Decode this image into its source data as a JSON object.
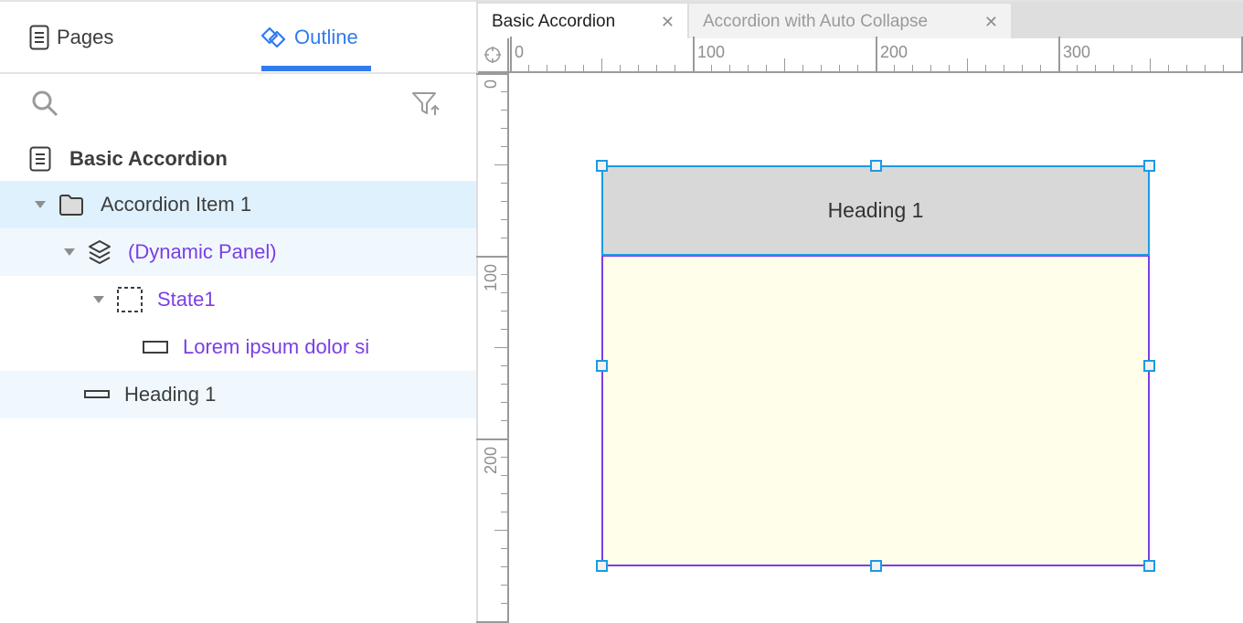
{
  "left_panel": {
    "tabs": [
      {
        "label": "Pages",
        "icon": "page-icon"
      },
      {
        "label": "Outline",
        "icon": "outline-icon",
        "active": true
      }
    ],
    "search_icon": "search-icon",
    "filter_icon": "filter-sort-icon",
    "page_title": "Basic Accordion",
    "tree": [
      {
        "label": "Accordion Item 1",
        "icon": "folder-icon",
        "expanded": true,
        "selected": true
      },
      {
        "label": "(Dynamic Panel)",
        "icon": "layers-icon",
        "expanded": true
      },
      {
        "label": "State1",
        "icon": "state-icon",
        "expanded": true
      },
      {
        "label": "Lorem ipsum dolor si",
        "icon": "rectangle-icon"
      },
      {
        "label": "Heading 1",
        "icon": "heading-icon"
      }
    ]
  },
  "doc_tabs": [
    {
      "label": "Basic Accordion",
      "active": true
    },
    {
      "label": "Accordion with Auto Collapse"
    }
  ],
  "rulers": {
    "horizontal": [
      "0",
      "100",
      "200",
      "300"
    ],
    "vertical": [
      "0",
      "100",
      "200"
    ]
  },
  "canvas": {
    "heading_text": "Heading 1"
  },
  "colors": {
    "accent": "#2f7bf0",
    "selection": "#1a9be4",
    "dynamic_panel": "#7b3fe4",
    "heading_fill": "#d8d8d8",
    "panel_fill": "#fefeea"
  }
}
